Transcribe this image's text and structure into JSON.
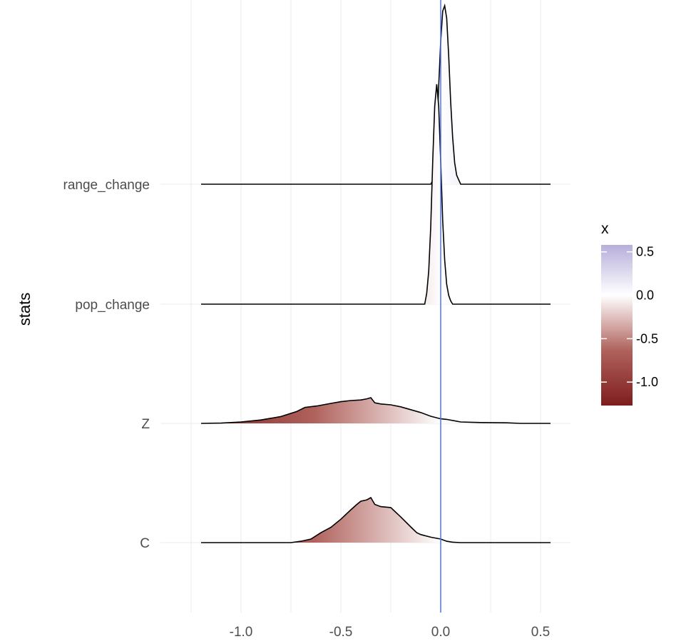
{
  "chart_data": {
    "type": "ridgeline",
    "xlabel": "",
    "ylabel": "stats",
    "xlim": [
      -1.25,
      0.55
    ],
    "x_ticks": [
      -1.0,
      -0.5,
      0.0,
      0.5
    ],
    "x_tick_labels": [
      "-1.0",
      "-0.5",
      "0.0",
      "0.5"
    ],
    "categories": [
      "range_change",
      "pop_change",
      "Z",
      "C"
    ],
    "reference_line_x": 0.0,
    "reference_line_color": "#4f72f5",
    "grid": true,
    "series": [
      {
        "name": "range_change",
        "x": [
          -1.2,
          -0.05,
          -0.04,
          -0.03,
          -0.02,
          -0.01,
          0.0,
          0.01,
          0.02,
          0.03,
          0.04,
          0.05,
          0.06,
          0.07,
          0.08,
          0.1,
          0.55
        ],
        "height": [
          0,
          0,
          0.02,
          0.08,
          0.25,
          0.55,
          0.8,
          0.97,
          1.0,
          0.93,
          0.72,
          0.46,
          0.26,
          0.12,
          0.05,
          0,
          0
        ]
      },
      {
        "name": "pop_change",
        "x": [
          -1.2,
          -0.08,
          -0.07,
          -0.06,
          -0.05,
          -0.04,
          -0.03,
          -0.02,
          -0.01,
          0.0,
          0.01,
          0.02,
          0.03,
          0.04,
          0.05,
          0.06,
          0.55
        ],
        "height": [
          0,
          0,
          0.05,
          0.15,
          0.35,
          0.65,
          0.9,
          1.0,
          0.9,
          0.65,
          0.38,
          0.2,
          0.09,
          0.04,
          0.015,
          0,
          0
        ]
      },
      {
        "name": "Z",
        "x": [
          -1.2,
          -1.1,
          -1.0,
          -0.9,
          -0.8,
          -0.72,
          -0.68,
          -0.62,
          -0.55,
          -0.5,
          -0.45,
          -0.4,
          -0.37,
          -0.35,
          -0.33,
          -0.3,
          -0.25,
          -0.2,
          -0.15,
          -0.1,
          -0.05,
          0.0,
          0.03,
          0.1,
          0.2,
          0.33,
          0.4,
          0.55
        ],
        "height": [
          0,
          0.01,
          0.05,
          0.12,
          0.24,
          0.42,
          0.56,
          0.61,
          0.7,
          0.76,
          0.8,
          0.82,
          0.86,
          0.9,
          0.72,
          0.68,
          0.65,
          0.58,
          0.48,
          0.38,
          0.25,
          0.16,
          0.14,
          0.05,
          0.03,
          0.02,
          0,
          0
        ]
      },
      {
        "name": "C",
        "x": [
          -1.2,
          -0.75,
          -0.7,
          -0.65,
          -0.6,
          -0.55,
          -0.5,
          -0.45,
          -0.42,
          -0.4,
          -0.37,
          -0.35,
          -0.33,
          -0.3,
          -0.25,
          -0.2,
          -0.15,
          -0.12,
          -0.1,
          -0.05,
          0.0,
          0.03,
          0.06,
          0.1,
          0.55
        ],
        "height": [
          0,
          0,
          0.03,
          0.08,
          0.22,
          0.34,
          0.52,
          0.73,
          0.85,
          0.92,
          0.95,
          1.0,
          0.85,
          0.8,
          0.78,
          0.57,
          0.35,
          0.22,
          0.18,
          0.12,
          0.08,
          0.03,
          0.01,
          0,
          0
        ]
      }
    ],
    "legend": {
      "title": "x",
      "position": "right",
      "range": [
        -1.27,
        0.58
      ],
      "ticks": [
        0.5,
        0.0,
        -0.5,
        -1.0
      ],
      "tick_labels": [
        "0.5",
        "0.0",
        "-0.5",
        "-1.0"
      ],
      "colors": {
        "low": "#7e1d1d",
        "mid": "#ffffff",
        "high": "#b7aedb"
      }
    }
  }
}
